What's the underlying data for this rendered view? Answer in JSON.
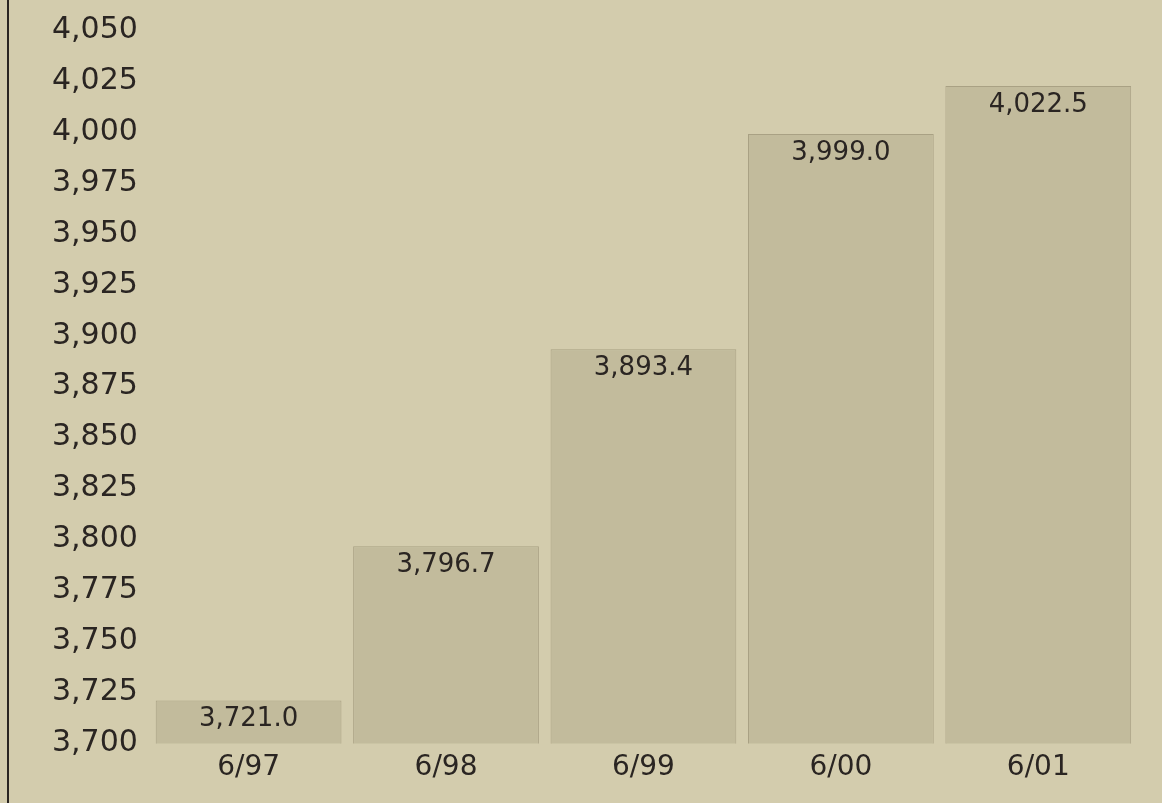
{
  "chart_data": {
    "type": "bar",
    "categories": [
      "6/97",
      "6/98",
      "6/99",
      "6/00",
      "6/01"
    ],
    "values": [
      3721.0,
      3796.7,
      3893.4,
      3999.0,
      4022.5
    ],
    "color": "#c2bb9c",
    "ylim": [
      3700,
      4050
    ],
    "yticks": [
      {
        "value": 3700,
        "label": "3,700"
      },
      {
        "value": 3725,
        "label": "3,725"
      },
      {
        "value": 3750,
        "label": "3,750"
      },
      {
        "value": 3775,
        "label": "3,775"
      },
      {
        "value": 3800,
        "label": "3,800"
      },
      {
        "value": 3825,
        "label": "3,825"
      },
      {
        "value": 3850,
        "label": "3,850"
      },
      {
        "value": 3875,
        "label": "3,875"
      },
      {
        "value": 3900,
        "label": "3,900"
      },
      {
        "value": 3925,
        "label": "3,925"
      },
      {
        "value": 3950,
        "label": "3,950"
      },
      {
        "value": 3975,
        "label": "3,975"
      },
      {
        "value": 4000,
        "label": "4,000"
      },
      {
        "value": 4025,
        "label": "4,025"
      },
      {
        "value": 4050,
        "label": "4,050"
      }
    ],
    "value_labels": [
      "3,721.0",
      "3,796.7",
      "3,893.4",
      "3,999.0",
      "4,022.5"
    ],
    "grid": false,
    "legend": false
  }
}
